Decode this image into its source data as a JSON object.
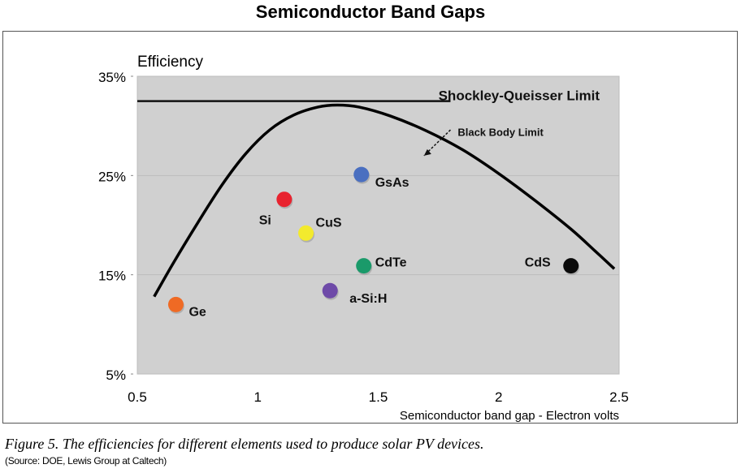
{
  "title": "Semiconductor Band Gaps",
  "caption": "Figure 5. The efficiencies for different elements used to produce solar PV devices.",
  "source": "(Source: DOE, Lewis Group at Caltech)",
  "chart_data": {
    "type": "scatter",
    "ylabel": "Efficiency",
    "xlabel": "Semiconductor band gap - Electron volts",
    "xlim": [
      0.5,
      2.5
    ],
    "ylim": [
      5,
      35
    ],
    "x_ticks": [
      "0.5",
      "1",
      "1.5",
      "2",
      "2.5"
    ],
    "x_tick_values": [
      0.5,
      1,
      1.5,
      2,
      2.5
    ],
    "y_ticks": [
      "5%",
      "15%",
      "25%",
      "35%"
    ],
    "y_tick_values": [
      5,
      15,
      25,
      35
    ],
    "grid": "horizontal",
    "plot_background": "#d0d0d0",
    "points": [
      {
        "label": "Ge",
        "x": 0.66,
        "y": 12.0,
        "color": "#ef6a24"
      },
      {
        "label": "Si",
        "x": 1.11,
        "y": 22.6,
        "color": "#e8232f"
      },
      {
        "label": "CuS",
        "x": 1.2,
        "y": 19.2,
        "color": "#f3ea2d"
      },
      {
        "label": "GsAs",
        "x": 1.43,
        "y": 25.1,
        "color": "#4a6fc0"
      },
      {
        "label": "CdTe",
        "x": 1.44,
        "y": 15.9,
        "color": "#1a9a6a"
      },
      {
        "label": "a-Si:H",
        "x": 1.3,
        "y": 13.4,
        "color": "#6e4aa8"
      },
      {
        "label": "CdS",
        "x": 2.3,
        "y": 15.9,
        "color": "#0a0a0a"
      }
    ],
    "shockley_queisser_limit": {
      "label": "Shockley-Queisser Limit",
      "y": 32.5,
      "x_range": [
        0.5,
        1.8
      ]
    },
    "black_body_limit": {
      "label": "Black Body Limit",
      "curve": [
        [
          0.57,
          12.8
        ],
        [
          0.65,
          16.2
        ],
        [
          0.75,
          20.2
        ],
        [
          0.85,
          24.0
        ],
        [
          0.95,
          27.2
        ],
        [
          1.05,
          29.6
        ],
        [
          1.15,
          31.1
        ],
        [
          1.25,
          31.9
        ],
        [
          1.33,
          32.1
        ],
        [
          1.42,
          31.9
        ],
        [
          1.55,
          31.0
        ],
        [
          1.7,
          29.5
        ],
        [
          1.85,
          27.6
        ],
        [
          2.0,
          25.2
        ],
        [
          2.15,
          22.5
        ],
        [
          2.3,
          19.6
        ],
        [
          2.4,
          17.4
        ],
        [
          2.48,
          15.6
        ]
      ]
    }
  }
}
